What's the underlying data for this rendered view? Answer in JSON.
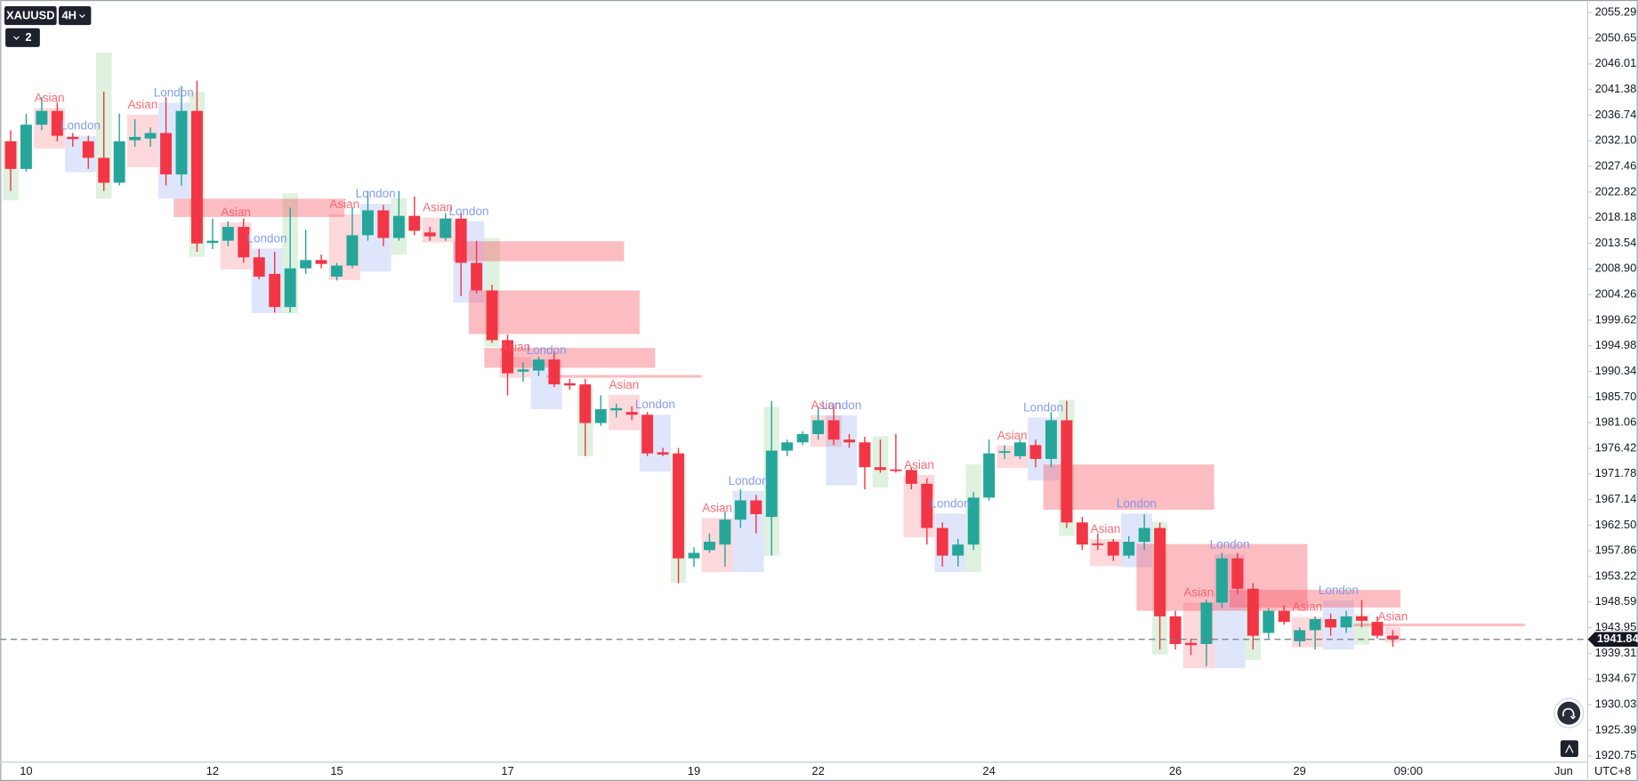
{
  "chart_data": {
    "type": "candlestick",
    "symbol": "XAUUSD",
    "interval": "4H",
    "indicator_count": 2,
    "timezone": "UTC+8",
    "last_price": 1941.84,
    "up_color": "#26a69a",
    "down_color": "#f23645",
    "grid": false,
    "ylim": [
      1919.6,
      2057.2
    ],
    "yticks": [
      2055.29,
      2050.65,
      2046.01,
      2041.38,
      2036.74,
      {
        "value": 2032.1,
        "label": "2032.10"
      },
      2027.46,
      2022.82,
      2018.18,
      2013.54,
      {
        "value": 2008.9,
        "label": "2008.90"
      },
      2004.26,
      1999.62,
      1994.98,
      1990.34,
      {
        "value": 1985.7,
        "label": "1985.70"
      },
      1981.06,
      1976.42,
      1971.78,
      1967.14,
      {
        "value": 1962.5,
        "label": "1962.50"
      },
      1957.86,
      1953.22,
      1948.59,
      1943.95,
      1939.31,
      1934.67,
      1930.03,
      1925.39,
      1920.75
    ],
    "categories": [
      null,
      "10",
      null,
      null,
      null,
      null,
      null,
      null,
      null,
      null,
      null,
      null,
      null,
      "12",
      null,
      null,
      null,
      null,
      null,
      null,
      null,
      "15",
      null,
      null,
      null,
      null,
      null,
      null,
      null,
      null,
      null,
      null,
      "17",
      null,
      null,
      null,
      null,
      null,
      null,
      null,
      null,
      null,
      null,
      null,
      "19",
      null,
      null,
      null,
      null,
      null,
      null,
      null,
      "22",
      null,
      null,
      null,
      null,
      null,
      null,
      null,
      null,
      null,
      null,
      "24",
      null,
      null,
      null,
      null,
      null,
      null,
      null,
      null,
      null,
      null,
      null,
      "26",
      null,
      null,
      null,
      null,
      null,
      null,
      null,
      "29",
      null,
      null,
      null,
      null,
      null,
      null,
      "09:00",
      null,
      null,
      null,
      null,
      null,
      null,
      null,
      null,
      null,
      "Jun"
    ],
    "open": [
      2032,
      2027,
      2035,
      2037.5,
      2032.8,
      2032,
      2029,
      2024.5,
      2032.2,
      2032.5,
      2033.5,
      2026,
      2037.5,
      2013.6,
      2014,
      2016.5,
      2011,
      2008,
      2002,
      2009,
      2010.5,
      2007.5,
      2009.5,
      2015,
      2019.5,
      2014.5,
      2018.5,
      2015.5,
      2014.5,
      2018,
      2010,
      2005,
      1996,
      1990.3,
      1990.5,
      1992.5,
      1988.2,
      1988,
      1981,
      1983.3,
      1983,
      1982.5,
      1975.7,
      1975.5,
      1956.5,
      1958,
      1959,
      1963.5,
      1967,
      1964,
      1976,
      1977.5,
      1979,
      1981.5,
      1978,
      1977.5,
      1973,
      1972.6,
      1972.5,
      1970,
      1962,
      1957,
      1959,
      1967.5,
      1975.7,
      1975,
      1977,
      1974.5,
      1981.5,
      1963,
      1959.2,
      1959.5,
      1957,
      1959.5,
      1962,
      1946,
      1941.2,
      1941,
      1948.5,
      1956.5,
      1951,
      1943,
      1947,
      1941.5,
      1943.5,
      1945.5,
      1944,
      1946,
      1945,
      1942.5,
      null,
      null,
      null,
      null,
      null,
      null,
      null,
      null,
      null,
      null,
      null
    ],
    "high": [
      2034,
      2037,
      2040,
      2039,
      2033.5,
      2033,
      2041,
      2037,
      2036,
      2034.5,
      2040,
      2042,
      2043,
      2018,
      2017.5,
      2018,
      2012.5,
      2012,
      2020,
      2016,
      2011.5,
      2010,
      2020,
      2023,
      2020.5,
      2023,
      2022,
      2016.5,
      2019,
      2019,
      2014,
      2006,
      1997,
      1992,
      1993,
      1994,
      1989,
      1989,
      1986,
      1984.5,
      1984,
      1983,
      1976.5,
      1976.5,
      1958.5,
      1961,
      1965,
      1969,
      1968,
      1985,
      1978,
      1979.5,
      1984,
      1984,
      1979,
      1978.5,
      1978,
      1979,
      1973,
      1971,
      1963,
      1960,
      1968.5,
      1978,
      1977,
      1978,
      1978,
      1983,
      1985,
      1964,
      1961,
      1960,
      1960.5,
      1964.5,
      1963,
      1947,
      1942,
      1949,
      1957.5,
      1957.5,
      1952,
      1947.5,
      1948,
      1944,
      1946,
      1946.5,
      1947,
      1949,
      1946,
      1943.5,
      null,
      null,
      null,
      null,
      null,
      null,
      null,
      null,
      null,
      null,
      null
    ],
    "low": [
      2023,
      2026.5,
      2034,
      2032,
      2031,
      2027,
      2023,
      2024,
      2031,
      2031,
      2024,
      2024,
      2012,
      2012.5,
      2013,
      2010,
      2007,
      2001,
      2001,
      2008,
      2009,
      2006.8,
      2009,
      2014,
      2013,
      2014,
      2015,
      2014,
      2014,
      2004,
      2004.5,
      1995.5,
      1986,
      1988.5,
      1989.5,
      1987.5,
      1987,
      1975,
      1980.5,
      1982,
      1981.5,
      1975,
      1975,
      1952,
      1955,
      1957.5,
      1955,
      1962,
      1961,
      1957,
      1975,
      1977,
      1978,
      1977,
      1976.5,
      1969,
      1972,
      1972,
      1969,
      1959,
      1955,
      1955,
      1958,
      1967,
      1974.5,
      1974.5,
      1973,
      1973,
      1962,
      1958,
      1958,
      1956,
      1956.5,
      1958,
      1940,
      1940,
      1939,
      1937,
      1947.5,
      1950,
      1940,
      1942,
      1944.5,
      1940.5,
      1940,
      1942.5,
      1943,
      1944,
      1942,
      1940.5,
      null,
      null,
      null,
      null,
      null,
      null,
      null,
      null,
      null,
      null,
      null
    ],
    "close": [
      2027,
      2035,
      2037.5,
      2033,
      2032.4,
      2029,
      2024.5,
      2032,
      2032.8,
      2033.5,
      2026,
      2037.5,
      2013.5,
      2014,
      2016.5,
      2011,
      2007.5,
      2002,
      2009,
      2010.5,
      2009.8,
      2009.5,
      2015,
      2019.5,
      2014.5,
      2018.5,
      2015.8,
      2014.8,
      2018,
      2010,
      2005,
      1996,
      1990,
      1990.7,
      1992.5,
      1988,
      1987.8,
      1981,
      1983.5,
      1983.7,
      1982.5,
      1975.5,
      1975.3,
      1956.5,
      1957.5,
      1959.5,
      1963.5,
      1967,
      1964.5,
      1976,
      1977.5,
      1979,
      1981.5,
      1978,
      1977.5,
      1973,
      1972.5,
      1972.4,
      1970,
      1962,
      1957,
      1959,
      1967.5,
      1975.5,
      1975.9,
      1977.5,
      1974.5,
      1981.5,
      1963,
      1959,
      1958.9,
      1957,
      1959.5,
      1962,
      1946,
      1941,
      1940.8,
      1948.5,
      1956.5,
      1951,
      1942.5,
      1947,
      1945,
      1943.5,
      1945.5,
      1944,
      1946,
      1945.2,
      1942.5,
      1941.84,
      null,
      null,
      null,
      null,
      null,
      null,
      null,
      null,
      null,
      null,
      null
    ],
    "asian_color": "#f7525f",
    "london_color": "#6e8cf0",
    "ny_color": "#4caf50",
    "asian_sessions": [
      {
        "label": "Asian",
        "start": 2,
        "end": 3,
        "high": 2038,
        "low": 2030.7
      },
      {
        "label": "Asian",
        "start": 8,
        "end": 9,
        "high": 2036.8,
        "low": 2027.3
      },
      {
        "label": "Asian",
        "start": 14,
        "end": 15,
        "high": 2017.3,
        "low": 2008.8
      },
      {
        "label": "Asian",
        "start": 21,
        "end": 22,
        "high": 2018.8,
        "low": 2006.9
      },
      {
        "label": "Asian",
        "start": 27,
        "end": 28,
        "high": 2018.2,
        "low": 2013.7
      },
      {
        "label": "Asian",
        "start": 32,
        "end": 33,
        "high": 1992.9,
        "low": 1989.2
      },
      {
        "label": "Asian",
        "start": 39,
        "end": 40,
        "high": 1986.1,
        "low": 1979.7
      },
      {
        "label": "Asian",
        "start": 45,
        "end": 46,
        "high": 1963.8,
        "low": 1954
      },
      {
        "label": "Asian",
        "start": 52,
        "end": 53,
        "high": 1982.4,
        "low": 1976.7
      },
      {
        "label": "Asian",
        "start": 58,
        "end": 59,
        "high": 1971.6,
        "low": 1960.3
      },
      {
        "label": "Asian",
        "start": 64,
        "end": 65,
        "high": 1976.9,
        "low": 1972.9
      },
      {
        "label": "Asian",
        "start": 70,
        "end": 71,
        "high": 1960,
        "low": 1955.1
      },
      {
        "label": "Asian",
        "start": 76,
        "end": 77,
        "high": 1948.5,
        "low": 1936.6
      },
      {
        "label": "Asian",
        "start": 83,
        "end": 84,
        "high": 1945.9,
        "low": 1940.4
      },
      {
        "label": "Asian",
        "start": 89,
        "end": 89,
        "high": 1944.1,
        "low": 1941.3
      }
    ],
    "london_sessions": [
      {
        "label": "London",
        "start": 4,
        "end": 5,
        "high": 2033,
        "low": 2026.4
      },
      {
        "label": "London",
        "start": 10,
        "end": 11,
        "high": 2039,
        "low": 2021.6
      },
      {
        "label": "London",
        "start": 16,
        "end": 17,
        "high": 2012.6,
        "low": 2000.9
      },
      {
        "label": "London",
        "start": 23,
        "end": 24,
        "high": 2020.7,
        "low": 2008.4
      },
      {
        "label": "London",
        "start": 29,
        "end": 30,
        "high": 2017.5,
        "low": 2002.8
      },
      {
        "label": "London",
        "start": 34,
        "end": 35,
        "high": 1992.4,
        "low": 1983.5
      },
      {
        "label": "London",
        "start": 41,
        "end": 42,
        "high": 1982.5,
        "low": 1972.2
      },
      {
        "label": "London",
        "start": 47,
        "end": 48,
        "high": 1968.7,
        "low": 1954
      },
      {
        "label": "London",
        "start": 53,
        "end": 54,
        "high": 1982.4,
        "low": 1969.7
      },
      {
        "label": "London",
        "start": 60,
        "end": 61,
        "high": 1964.6,
        "low": 1954
      },
      {
        "label": "London",
        "start": 66,
        "end": 67,
        "high": 1982,
        "low": 1970.6
      },
      {
        "label": "London",
        "start": 72,
        "end": 73,
        "high": 1964.6,
        "low": 1954.9
      },
      {
        "label": "London",
        "start": 78,
        "end": 79,
        "high": 1957.2,
        "low": 1936.6
      },
      {
        "label": "London",
        "start": 85,
        "end": 86,
        "high": 1948.9,
        "low": 1940
      }
    ],
    "ny_sessions": [
      {
        "start": 0,
        "end": 0,
        "high": 2032.1,
        "low": 2021.3
      },
      {
        "start": 6,
        "end": 6,
        "high": 2048.1,
        "low": 2021.6
      },
      {
        "start": 12,
        "end": 12,
        "high": 2040.9,
        "low": 2011.1
      },
      {
        "start": 18,
        "end": 18,
        "high": 2022.6,
        "low": 2000.9
      },
      {
        "start": 25,
        "end": 25,
        "high": 2021.7,
        "low": 2011.5
      },
      {
        "start": 31,
        "end": 31,
        "high": 2014.5,
        "low": 1994.8
      },
      {
        "start": 37,
        "end": 37,
        "high": 1987.6,
        "low": 1975
      },
      {
        "start": 43,
        "end": 43,
        "high": 1975.4,
        "low": 1952.1
      },
      {
        "start": 49,
        "end": 49,
        "high": 1983.9,
        "low": 1957
      },
      {
        "start": 56,
        "end": 56,
        "high": 1978.6,
        "low": 1969.3
      },
      {
        "start": 62,
        "end": 62,
        "high": 1973.5,
        "low": 1954
      },
      {
        "start": 68,
        "end": 68,
        "high": 1985.2,
        "low": 1960.6
      },
      {
        "start": 74,
        "end": 74,
        "high": 1963.1,
        "low": 1939.1
      },
      {
        "start": 80,
        "end": 80,
        "high": 1948.3,
        "low": 1938.1
      },
      {
        "start": 87,
        "end": 87,
        "high": 1946.4,
        "low": 1940.9
      }
    ],
    "zones": [
      {
        "start": 11,
        "end": 21,
        "high": 2021.6,
        "low": 2018.3
      },
      {
        "start": 29,
        "end": 39,
        "high": 2013.9,
        "low": 2010.3
      },
      {
        "start": 30,
        "end": 40,
        "high": 2005,
        "low": 1997.1
      },
      {
        "start": 31,
        "end": 41,
        "high": 1994.6,
        "low": 1991
      },
      {
        "start": 35,
        "end": 44,
        "high": 1989.7,
        "low": 1989.2
      },
      {
        "start": 67,
        "end": 77,
        "high": 1973.5,
        "low": 1965.3
      },
      {
        "start": 73,
        "end": 83,
        "high": 1959.1,
        "low": 1947
      },
      {
        "start": 79,
        "end": 89,
        "high": 1950.8,
        "low": 1947.6
      },
      {
        "start": 87,
        "end": 97,
        "high": 1944.7,
        "low": 1944.2
      }
    ]
  }
}
